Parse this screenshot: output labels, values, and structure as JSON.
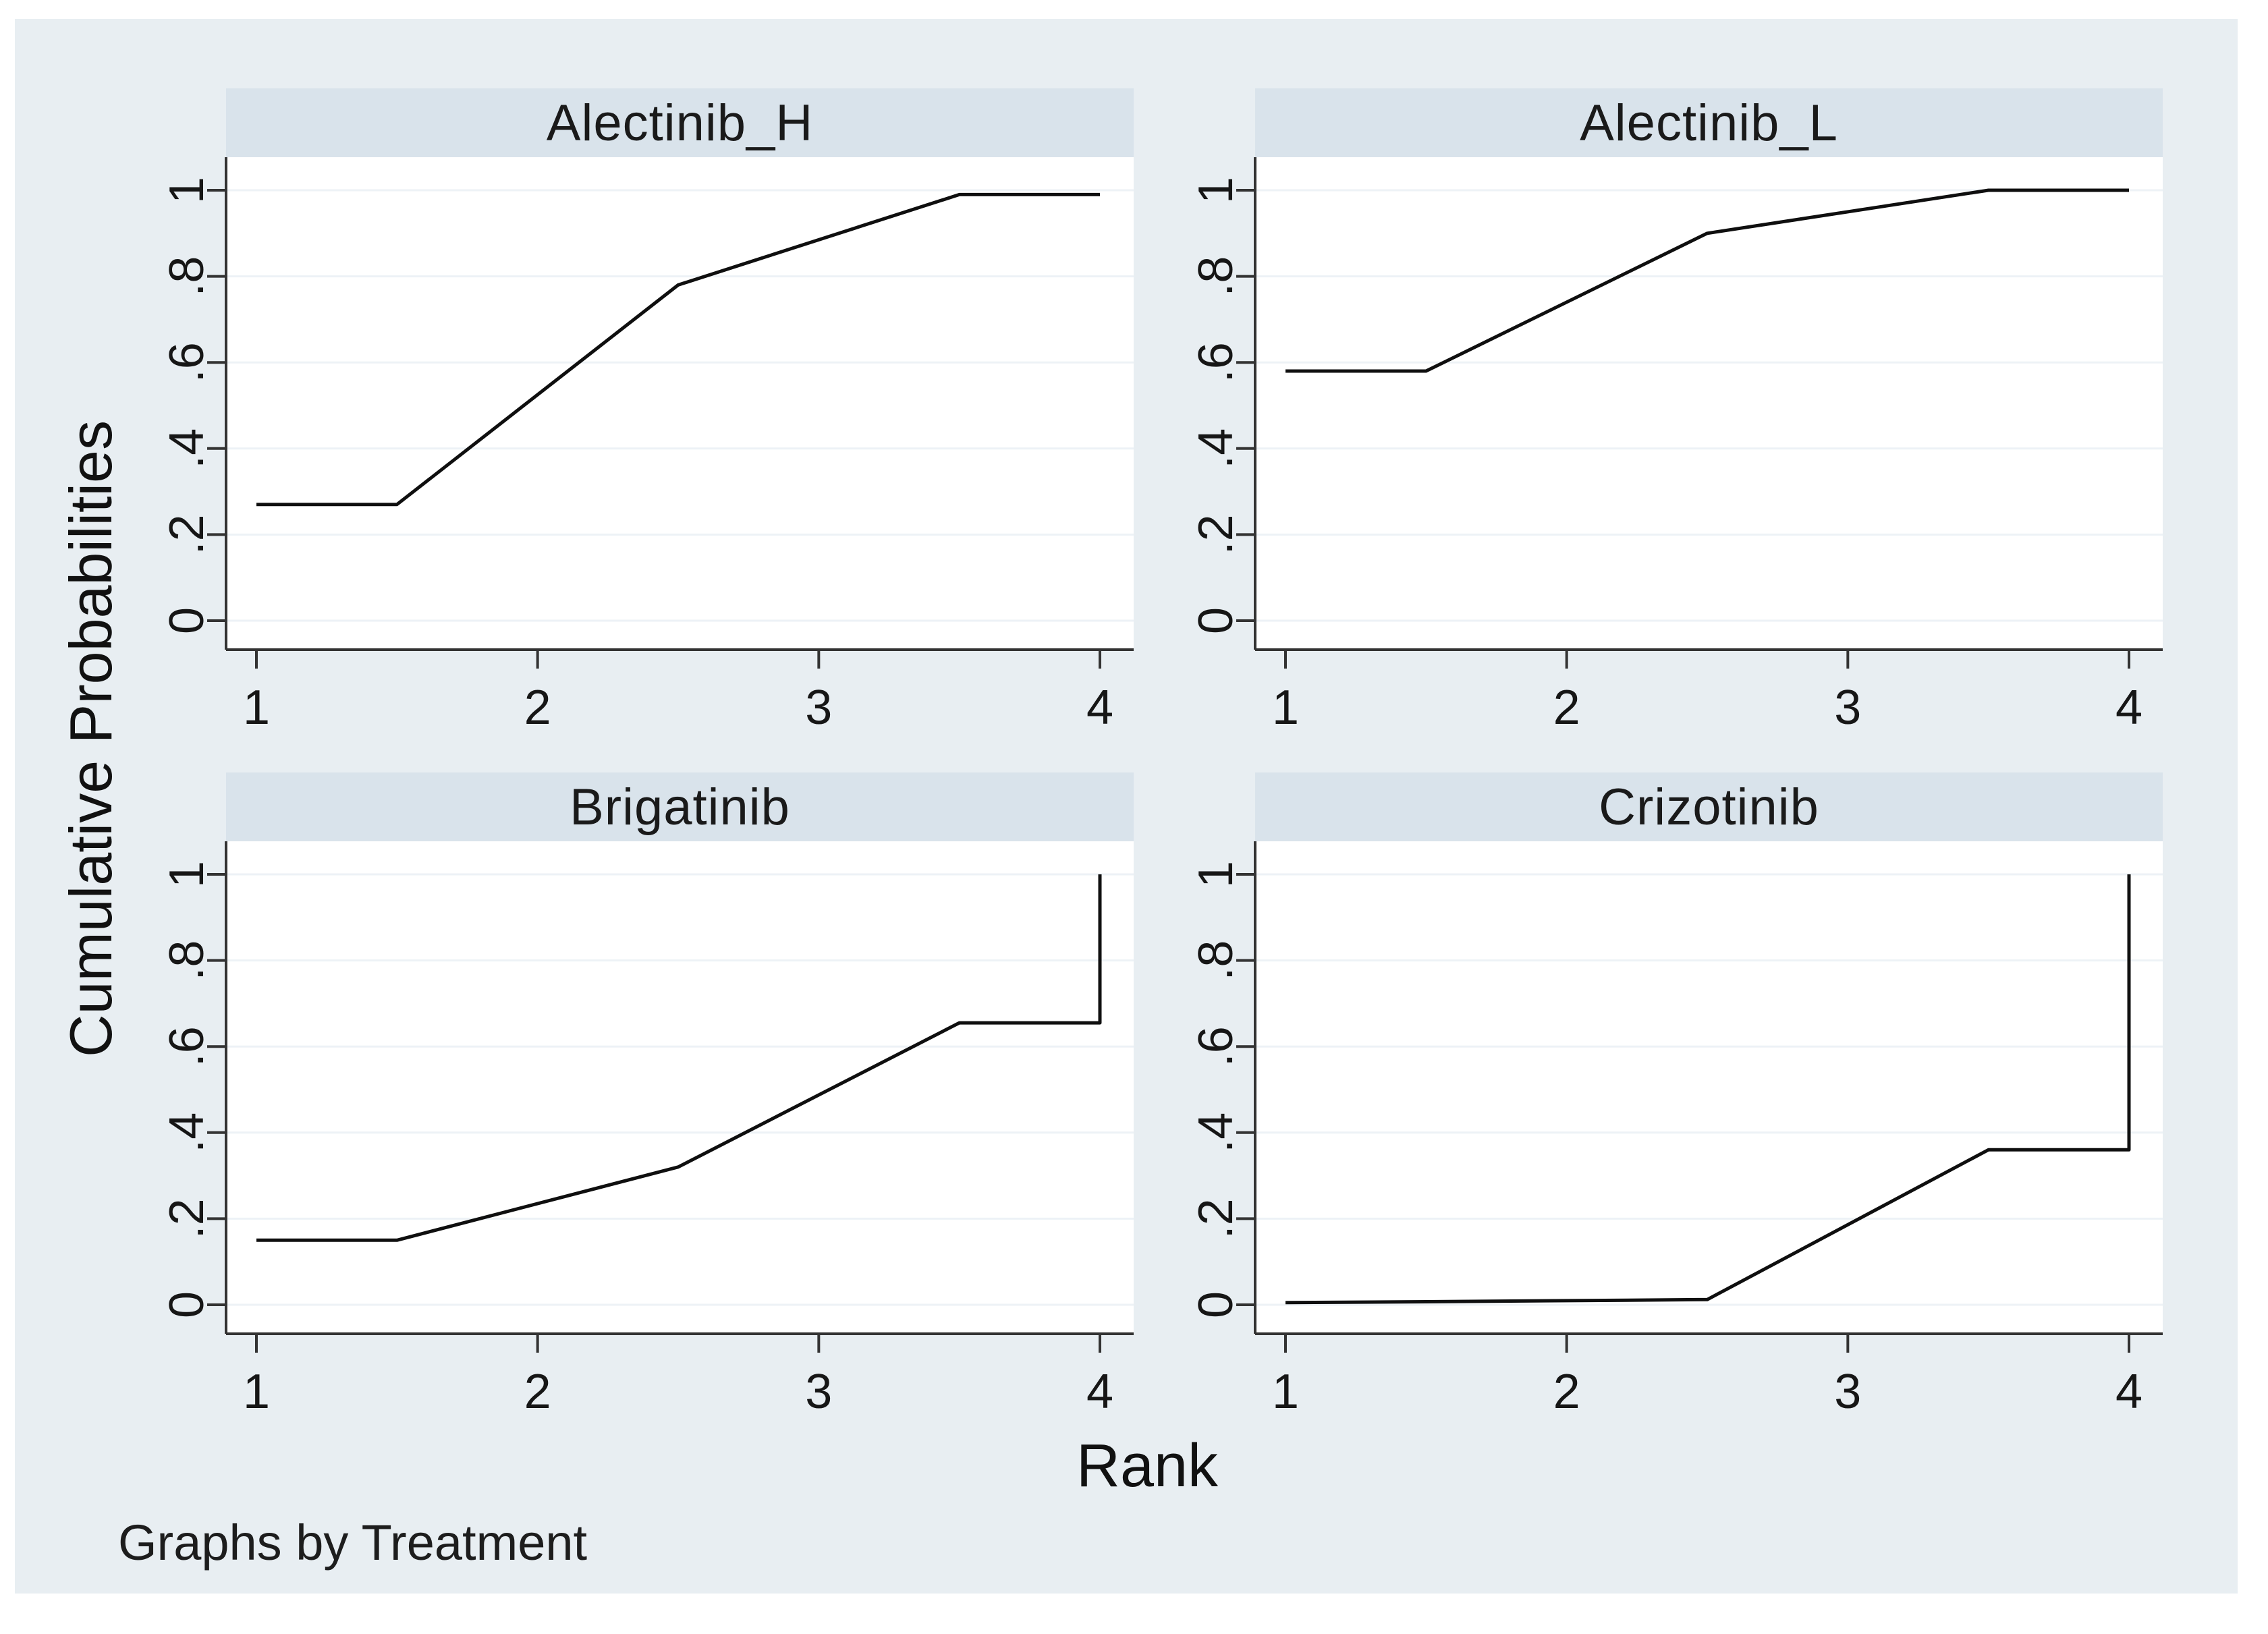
{
  "figure": {
    "note": "Graphs by Treatment"
  },
  "colors": {
    "background": "#e8eef2",
    "panel_title_bg": "#d9e3eb",
    "plot_bg": "#ffffff",
    "gridline": "#edf2f6",
    "axis": "#333333",
    "data_line": "#0f0f0f",
    "text": "#161616"
  },
  "chart_data": {
    "type": "line",
    "layout": "2x2 small multiples (Stata graph by Treatment)",
    "title": "",
    "xlabel": "Rank",
    "ylabel": "Cumulative Probabilities",
    "note": "Graphs by Treatment",
    "x_range": [
      1,
      4
    ],
    "y_range": [
      0,
      1
    ],
    "x_ticks": [
      1,
      2,
      3,
      4
    ],
    "x_tick_labels": [
      "1",
      "2",
      "3",
      "4"
    ],
    "y_ticks": [
      0,
      0.2,
      0.4,
      0.6,
      0.8,
      1
    ],
    "y_tick_labels": [
      "0",
      ".2",
      ".4",
      ".6",
      ".8",
      "1"
    ],
    "grid": "horizontal gridlines at y ticks",
    "legend": "none",
    "panels": [
      {
        "title": "Alectinib_H",
        "points": [
          [
            1,
            0.27
          ],
          [
            1.5,
            0.27
          ],
          [
            2.5,
            0.78
          ],
          [
            3.5,
            0.99
          ],
          [
            4,
            0.99
          ]
        ]
      },
      {
        "title": "Alectinib_L",
        "points": [
          [
            1,
            0.58
          ],
          [
            1.5,
            0.58
          ],
          [
            2.5,
            0.9
          ],
          [
            3.5,
            1.0
          ],
          [
            4,
            1.0
          ]
        ]
      },
      {
        "title": "Brigatinib",
        "points": [
          [
            1,
            0.15
          ],
          [
            1.5,
            0.15
          ],
          [
            2.5,
            0.32
          ],
          [
            3.5,
            0.655
          ],
          [
            4,
            0.655
          ],
          [
            4,
            1.0
          ]
        ]
      },
      {
        "title": "Crizotinib",
        "points": [
          [
            1,
            0.005
          ],
          [
            1.5,
            0.007
          ],
          [
            2.5,
            0.012
          ],
          [
            3.5,
            0.36
          ],
          [
            4,
            0.36
          ],
          [
            4,
            1.0
          ]
        ]
      }
    ]
  }
}
